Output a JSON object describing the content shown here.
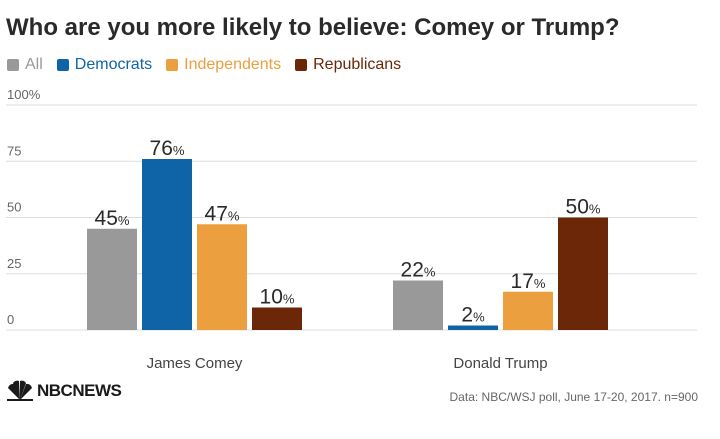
{
  "colors": {
    "all": "#999999",
    "democrats": "#0f64a8",
    "independents": "#eb9f3e",
    "republicans": "#6b2708",
    "grid": "#dddddd",
    "axis_text": "#666666",
    "value_text": "#2a2a2a"
  },
  "chart_data": {
    "type": "bar",
    "title": "Who are you more likely to believe: Comey or Trump?",
    "categories": [
      "James Comey",
      "Donald Trump"
    ],
    "series": [
      {
        "name": "All",
        "values": [
          45,
          22
        ]
      },
      {
        "name": "Democrats",
        "values": [
          76,
          2
        ]
      },
      {
        "name": "Independents",
        "values": [
          47,
          17
        ]
      },
      {
        "name": "Republicans",
        "values": [
          10,
          50
        ]
      }
    ],
    "value_suffix": "%",
    "yticks": [
      0,
      25,
      50,
      75,
      100
    ],
    "ytick_labels": [
      "0",
      "25",
      "50",
      "75",
      "100%"
    ],
    "ylim": [
      0,
      100
    ],
    "xlabel": "",
    "ylabel": "",
    "legend_position": "top-left"
  },
  "branding": {
    "logo_text": "NBCNEWS",
    "source": "Data: NBC/WSJ poll, June 17-20, 2017. n=900"
  }
}
